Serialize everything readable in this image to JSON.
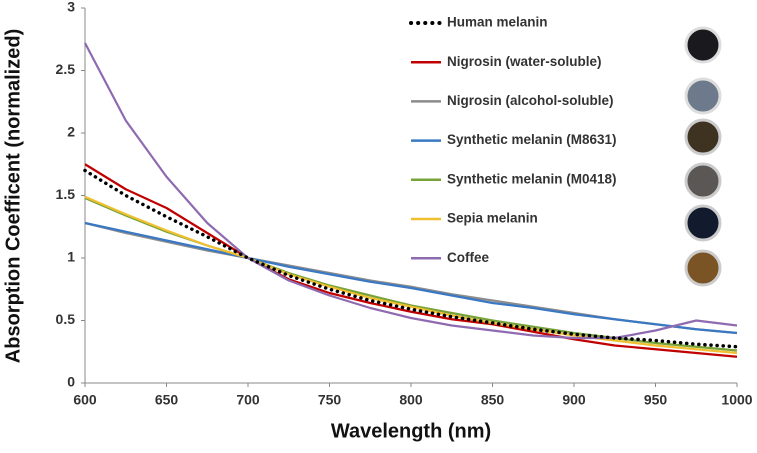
{
  "chart_data": {
    "type": "line",
    "x_label": "Wavelength (nm)",
    "y_label": "Absorption Coefficent (normalized)",
    "x": [
      600,
      625,
      650,
      675,
      700,
      725,
      750,
      775,
      800,
      825,
      850,
      875,
      900,
      925,
      950,
      975,
      1000
    ],
    "xlim": [
      600,
      1000
    ],
    "xticks": [
      600,
      650,
      700,
      750,
      800,
      850,
      900,
      950,
      1000
    ],
    "ylim": [
      0,
      3
    ],
    "yticks": [
      0,
      0.5,
      1,
      1.5,
      2,
      2.5,
      3
    ],
    "grid": false,
    "legend": "upper right",
    "series": [
      {
        "name": "Human melanin",
        "color": "#000000",
        "dashed": true,
        "values": [
          1.7,
          1.5,
          1.33,
          1.17,
          1.0,
          0.86,
          0.75,
          0.66,
          0.59,
          0.53,
          0.48,
          0.43,
          0.39,
          0.36,
          0.34,
          0.31,
          0.29
        ]
      },
      {
        "name": "Nigrosin (water-soluble)",
        "color": "#c00000",
        "values": [
          1.75,
          1.55,
          1.4,
          1.2,
          1.0,
          0.83,
          0.72,
          0.64,
          0.57,
          0.51,
          0.47,
          0.41,
          0.35,
          0.3,
          0.27,
          0.24,
          0.21
        ]
      },
      {
        "name": "Nigrosin (alcohol-soluble)",
        "color": "#8c8c8c",
        "values": [
          1.28,
          1.2,
          1.13,
          1.06,
          1.0,
          0.94,
          0.88,
          0.82,
          0.77,
          0.71,
          0.66,
          0.61,
          0.56,
          0.51,
          0.47,
          0.43,
          0.4
        ]
      },
      {
        "name": "Synthetic melanin (M8631)",
        "color": "#3a78c3",
        "values": [
          1.28,
          1.21,
          1.14,
          1.07,
          1.0,
          0.93,
          0.87,
          0.81,
          0.76,
          0.7,
          0.64,
          0.6,
          0.55,
          0.51,
          0.47,
          0.43,
          0.4
        ]
      },
      {
        "name": "Synthetic melanin (M0418)",
        "color": "#77a33a",
        "values": [
          1.48,
          1.34,
          1.21,
          1.1,
          1.0,
          0.88,
          0.78,
          0.7,
          0.62,
          0.56,
          0.5,
          0.45,
          0.4,
          0.36,
          0.32,
          0.29,
          0.26
        ]
      },
      {
        "name": "Sepia melanin",
        "color": "#f0c030",
        "values": [
          1.49,
          1.35,
          1.22,
          1.1,
          1.0,
          0.87,
          0.77,
          0.68,
          0.61,
          0.54,
          0.48,
          0.43,
          0.38,
          0.34,
          0.3,
          0.27,
          0.24
        ]
      },
      {
        "name": "Coffee",
        "color": "#8e6bb0",
        "values": [
          2.72,
          2.1,
          1.65,
          1.28,
          1.0,
          0.82,
          0.7,
          0.6,
          0.52,
          0.46,
          0.42,
          0.38,
          0.36,
          0.36,
          0.42,
          0.5,
          0.46
        ]
      }
    ]
  }
}
